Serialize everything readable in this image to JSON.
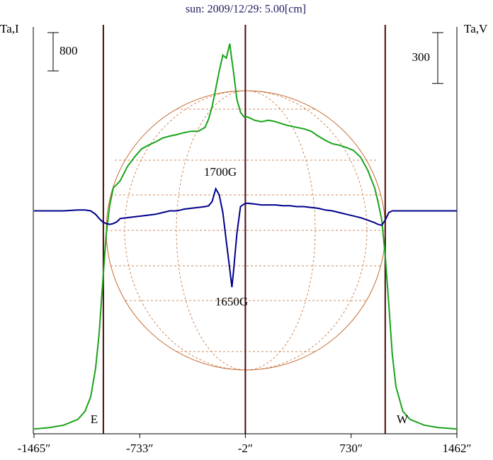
{
  "chart_data": {
    "type": "line",
    "title": "sun: 2009/12/29: 5.00[cm]",
    "y_label": "Ta,I",
    "y2_label": "Ta,V",
    "x": [
      -1465,
      -1357,
      -1259,
      -1161,
      -1112,
      -1073,
      -1039,
      -1014,
      -990,
      -965,
      -941,
      -916,
      -892,
      -868,
      -819,
      -770,
      -721,
      -672,
      -623,
      -574,
      -525,
      -476,
      -427,
      -379,
      -330,
      -281,
      -256,
      -232,
      -207,
      -183,
      -158,
      -134,
      -110,
      -95,
      -85,
      -61,
      -36,
      -12,
      13,
      62,
      110,
      159,
      208,
      257,
      306,
      355,
      404,
      453,
      502,
      551,
      600,
      648,
      697,
      746,
      795,
      844,
      893,
      917,
      942,
      966,
      991,
      1015,
      1040,
      1088,
      1137,
      1235,
      1333,
      1462
    ],
    "series": [
      {
        "name": "Ta,I",
        "color": "#1aa31a",
        "axis": "y",
        "values": [
          0,
          30,
          80,
          200,
          370,
          670,
          1260,
          2000,
          3040,
          4080,
          4670,
          5040,
          5110,
          5190,
          5480,
          5680,
          5850,
          5930,
          6000,
          6080,
          6120,
          6150,
          6190,
          6220,
          6220,
          6300,
          6480,
          6740,
          7110,
          7480,
          7810,
          7750,
          8050,
          7700,
          7480,
          6890,
          6620,
          6520,
          6520,
          6450,
          6420,
          6450,
          6420,
          6370,
          6330,
          6300,
          6270,
          6220,
          6120,
          6030,
          5960,
          5930,
          5880,
          5820,
          5680,
          5410,
          5040,
          4740,
          4370,
          3630,
          2600,
          1560,
          890,
          370,
          200,
          80,
          30,
          0
        ]
      },
      {
        "name": "Ta,V",
        "color": "#00008b",
        "axis": "y2",
        "values": [
          15,
          15,
          15,
          20,
          20,
          15,
          -5,
          -30,
          -50,
          -60,
          -65,
          -60,
          -50,
          -30,
          -25,
          -20,
          -15,
          -10,
          -5,
          5,
          15,
          15,
          25,
          30,
          35,
          40,
          45,
          70,
          145,
          110,
          5,
          -165,
          -330,
          -435,
          -350,
          -120,
          40,
          55,
          60,
          55,
          50,
          50,
          50,
          45,
          45,
          40,
          40,
          35,
          30,
          20,
          15,
          5,
          -5,
          -15,
          -25,
          -40,
          -55,
          -65,
          -70,
          -40,
          5,
          15,
          15,
          15,
          15,
          15,
          15,
          15
        ]
      }
    ],
    "xlim": [
      -1465,
      1462
    ],
    "xticks": [
      {
        "value": -1465,
        "label": "-1465″"
      },
      {
        "value": -733,
        "label": "-733″"
      },
      {
        "value": -2,
        "label": "-2″"
      },
      {
        "value": 730,
        "label": "730″"
      },
      {
        "value": 1462,
        "label": "1462″"
      }
    ],
    "ylim": [
      -100,
      8400
    ],
    "y2lim": [
      -1300,
      1100
    ],
    "scale_bars": [
      {
        "axis": "y",
        "value": 800
      },
      {
        "axis": "y2",
        "value": 300
      }
    ],
    "vlines": [
      -985,
      -2,
      966
    ],
    "annotations": [
      "E",
      "W",
      "1700G",
      "1650G"
    ]
  }
}
